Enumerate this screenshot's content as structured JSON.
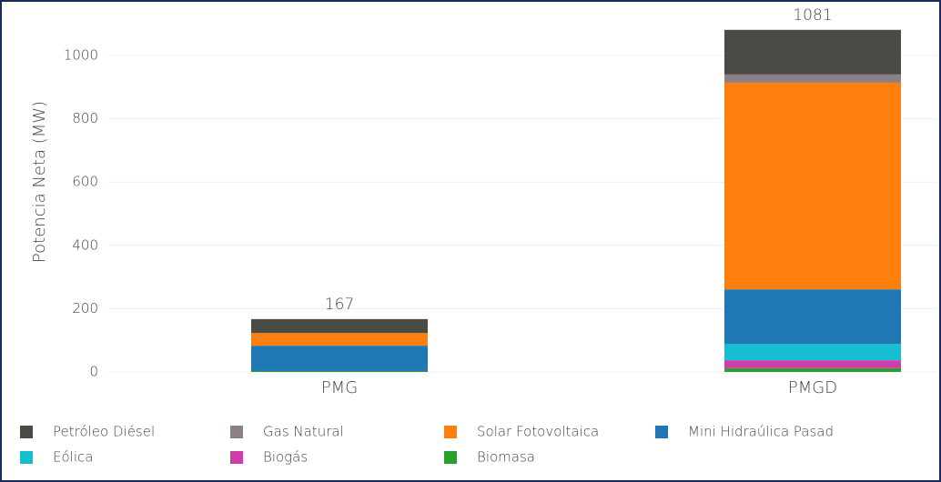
{
  "chart_data": {
    "type": "stacked_bar",
    "y_label": "Potencia Neta (MW)",
    "categories": [
      "PMG",
      "PMGD"
    ],
    "totals": [
      167,
      1081
    ],
    "series": [
      {
        "name": "Petróleo Diésel",
        "color": "#4b4b46",
        "values": [
          44,
          141
        ]
      },
      {
        "name": "Gas Natural",
        "color": "#8c7f86",
        "values": [
          0,
          26
        ]
      },
      {
        "name": "Solar Fotovoltaica",
        "color": "#ff7f0e",
        "values": [
          40,
          653
        ]
      },
      {
        "name": "Mini Hidraúlica Pasad",
        "color": "#1f77b4",
        "values": [
          80,
          172
        ]
      },
      {
        "name": "Eólica",
        "color": "#17becf",
        "values": [
          0,
          52
        ]
      },
      {
        "name": "Biogás",
        "color": "#d03ca8",
        "values": [
          0,
          25
        ]
      },
      {
        "name": "Biomasa",
        "color": "#2ca02c",
        "values": [
          3,
          12
        ]
      }
    ],
    "ylim": [
      0,
      1100
    ],
    "yticks": [
      0,
      200,
      400,
      600,
      800,
      1000
    ],
    "grid": true
  }
}
